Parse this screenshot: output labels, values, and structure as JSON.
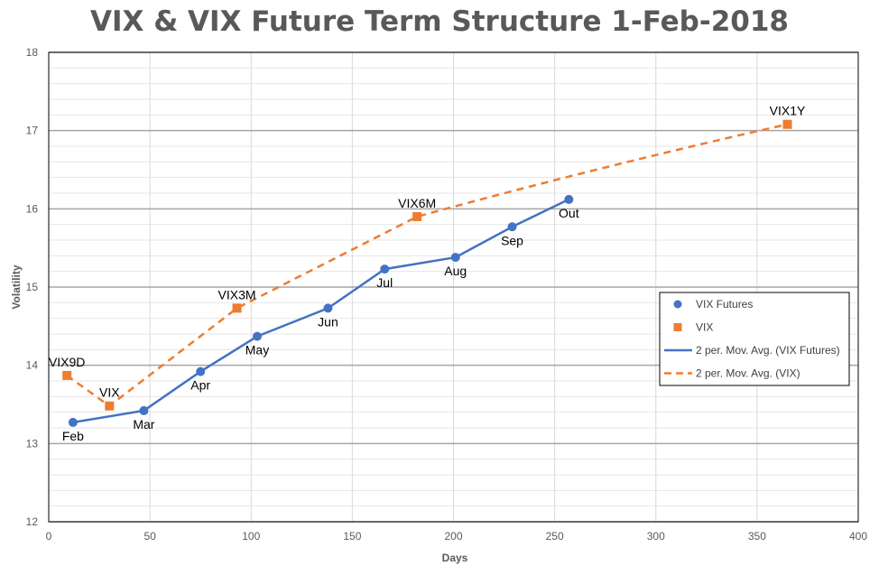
{
  "chart_data": {
    "type": "scatter",
    "title": "VIX & VIX Future Term Structure 1-Feb-2018",
    "xlabel": "Days",
    "ylabel": "Volatility",
    "xlim": [
      0,
      400
    ],
    "ylim": [
      12,
      18
    ],
    "xticks": [
      0,
      50,
      100,
      150,
      200,
      250,
      300,
      350,
      400
    ],
    "yticks": [
      12,
      13,
      14,
      15,
      16,
      17,
      18
    ],
    "grid": true,
    "legend_position": "right",
    "series": [
      {
        "name": "VIX Futures",
        "marker": "circle",
        "color": "#4472C4",
        "points": [
          {
            "x": 12,
            "y": 13.27,
            "label": "Feb"
          },
          {
            "x": 47,
            "y": 13.42,
            "label": "Mar"
          },
          {
            "x": 75,
            "y": 13.92,
            "label": "Apr"
          },
          {
            "x": 103,
            "y": 14.37,
            "label": "May"
          },
          {
            "x": 138,
            "y": 14.73,
            "label": "Jun"
          },
          {
            "x": 166,
            "y": 15.23,
            "label": "Jul"
          },
          {
            "x": 201,
            "y": 15.38,
            "label": "Aug"
          },
          {
            "x": 229,
            "y": 15.77,
            "label": "Sep"
          },
          {
            "x": 257,
            "y": 16.12,
            "label": "Out"
          }
        ]
      },
      {
        "name": "VIX",
        "marker": "square",
        "color": "#ED7D31",
        "points": [
          {
            "x": 9,
            "y": 13.87,
            "label": "VIX9D"
          },
          {
            "x": 30,
            "y": 13.48,
            "label": "VIX"
          },
          {
            "x": 93,
            "y": 14.73,
            "label": "VIX3M"
          },
          {
            "x": 182,
            "y": 15.9,
            "label": "VIX6M"
          },
          {
            "x": 365,
            "y": 17.08,
            "label": "VIX1Y"
          }
        ]
      }
    ],
    "legend": [
      {
        "label": "VIX Futures",
        "kind": "circle",
        "color": "#4472C4"
      },
      {
        "label": "VIX",
        "kind": "square",
        "color": "#ED7D31"
      },
      {
        "label": "2 per. Mov. Avg. (VIX Futures)",
        "kind": "solid-line",
        "color": "#4472C4"
      },
      {
        "label": "2 per. Mov. Avg. (VIX)",
        "kind": "dashed-line",
        "color": "#ED7D31"
      }
    ]
  }
}
